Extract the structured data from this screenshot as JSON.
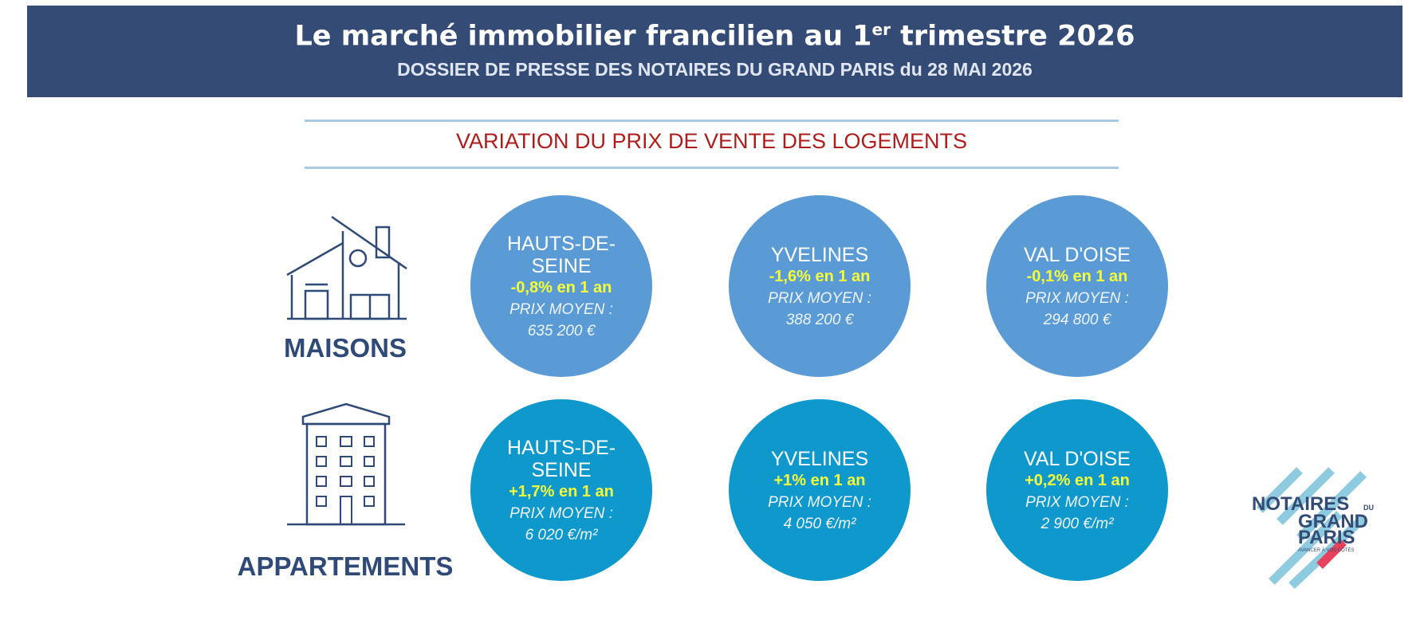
{
  "header": {
    "title_parts": [
      "Le marché immobilier francilien au 1",
      "er",
      " trimestre 2026"
    ],
    "subtitle": "DOSSIER DE PRESSE DES NOTAIRES DU GRAND PARIS du 28 MAI 2026"
  },
  "section_title": "VARIATION DU PRIX DE VENTE DES LOGEMENTS",
  "rows": [
    {
      "label": "MAISONS",
      "items": [
        {
          "name": "HAUTS-DE-SEINE",
          "variation": "-0,8% en 1 an",
          "price_label": "PRIX MOYEN :",
          "price": "635 200 €"
        },
        {
          "name": "YVELINES",
          "variation": "-1,6% en 1 an",
          "price_label": "PRIX MOYEN :",
          "price": "388 200 €"
        },
        {
          "name": "VAL D'OISE",
          "variation": "-0,1% en 1 an",
          "price_label": "PRIX MOYEN :",
          "price": "294 800 €"
        }
      ]
    },
    {
      "label": "APPARTEMENTS",
      "items": [
        {
          "name": "HAUTS-DE-SEINE",
          "variation": "+1,7% en 1 an",
          "price_label": "PRIX MOYEN :",
          "price": "6 020 €/m²"
        },
        {
          "name": "YVELINES",
          "variation": "+1% en 1 an",
          "price_label": "PRIX MOYEN :",
          "price": "4 050 €/m²"
        },
        {
          "name": "VAL D'OISE",
          "variation": "+0,2% en 1 an",
          "price_label": "PRIX MOYEN :",
          "price": "2 900 €/m²"
        }
      ]
    }
  ],
  "logo": {
    "line1": "NOTAIRES",
    "small": "DU",
    "line2": "GRAND",
    "line3": "PARIS",
    "tagline": "AVANCER À VOS CÔTÉS"
  }
}
